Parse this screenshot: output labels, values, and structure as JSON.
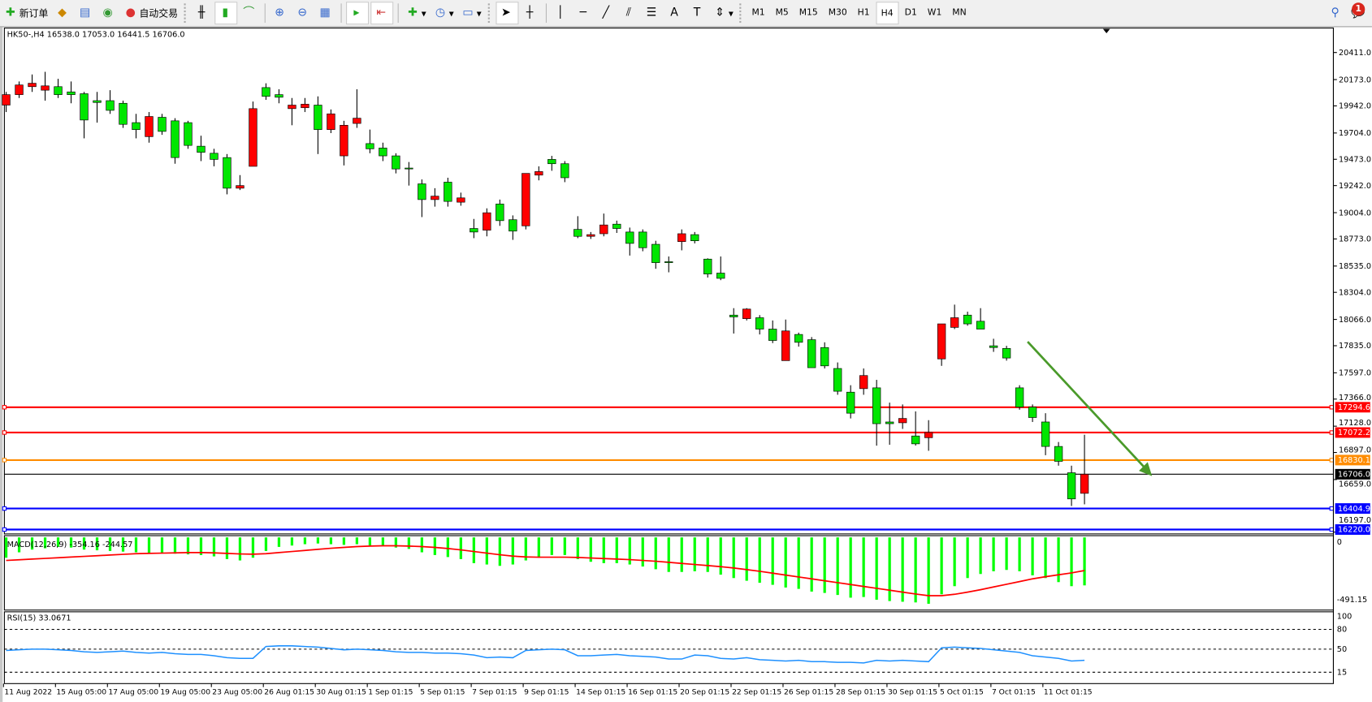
{
  "toolbar": {
    "new_order": "新订单",
    "auto_trading": "自动交易",
    "timeframes": [
      "M1",
      "M5",
      "M15",
      "M30",
      "H1",
      "H4",
      "D1",
      "W1",
      "MN"
    ],
    "active_timeframe": "H4",
    "notification_count": "1"
  },
  "chart": {
    "info": "HK50-,H4  16538.0 17053.0 16441.5 16706.0",
    "macd_label": "MACD(12,26,9) -354.16 -244.57",
    "rsi_label": "RSI(15) 33.0671",
    "price_ticks": [
      "20411.0",
      "20173.0",
      "19942.0",
      "19704.0",
      "19473.0",
      "19242.0",
      "19004.0",
      "18773.0",
      "18535.0",
      "18304.0",
      "18066.0",
      "17835.0",
      "17597.0",
      "17366.0",
      "17128.0",
      "16897.0",
      "16659.0",
      "16197.0"
    ],
    "macd_ticks": [
      "0",
      "-491.15"
    ],
    "rsi_ticks": [
      "100",
      "80",
      "50",
      "15"
    ],
    "time_labels": [
      "11 Aug 2022",
      "15 Aug 05:00",
      "17 Aug 05:00",
      "19 Aug 05:00",
      "23 Aug 05:00",
      "26 Aug 01:15",
      "30 Aug 01:15",
      "1 Sep 01:15",
      "5 Sep 01:15",
      "7 Sep 01:15",
      "9 Sep 01:15",
      "14 Sep 01:15",
      "16 Sep 01:15",
      "20 Sep 01:15",
      "22 Sep 01:15",
      "26 Sep 01:15",
      "28 Sep 01:15",
      "30 Sep 01:15",
      "5 Oct 01:15",
      "7 Oct 01:15",
      "11 Oct 01:15"
    ],
    "colors": {
      "up": "#ff0000",
      "down": "#00e600",
      "macd_hist": "#00ff00",
      "signal": "#ff0000",
      "rsi": "#1e90ff",
      "arrow": "#4a9a2a"
    },
    "hlines": [
      {
        "price": "17294.6",
        "color": "#ff0000"
      },
      {
        "price": "17072.2",
        "color": "#ff0000"
      },
      {
        "price": "16830.1",
        "color": "#ff8c00"
      },
      {
        "price": "16706.0",
        "color": "#000000"
      },
      {
        "price": "16404.9",
        "color": "#0000ff"
      },
      {
        "price": "16220.0",
        "color": "#0000ff"
      }
    ],
    "candles": [
      [
        19949,
        20065,
        19888,
        20041
      ],
      [
        20041,
        20157,
        20011,
        20126
      ],
      [
        20111,
        20218,
        20065,
        20141
      ],
      [
        20080,
        20241,
        19988,
        20118
      ],
      [
        20111,
        20180,
        20011,
        20041
      ],
      [
        20065,
        20157,
        19965,
        20041
      ],
      [
        20049,
        20065,
        19657,
        19818
      ],
      [
        19988,
        20065,
        19795,
        19972
      ],
      [
        19988,
        20080,
        19872,
        19903
      ],
      [
        19965,
        19988,
        19749,
        19780
      ],
      [
        19795,
        19872,
        19657,
        19734
      ],
      [
        19672,
        19888,
        19619,
        19849
      ],
      [
        19842,
        19872,
        19688,
        19718
      ],
      [
        19811,
        19834,
        19434,
        19488
      ],
      [
        19795,
        19811,
        19565,
        19595
      ],
      [
        19588,
        19680,
        19457,
        19534
      ],
      [
        19526,
        19565,
        19411,
        19472
      ],
      [
        19488,
        19519,
        19165,
        19219
      ],
      [
        19219,
        19334,
        19203,
        19242
      ],
      [
        19411,
        19980,
        19411,
        19918
      ],
      [
        20103,
        20141,
        19995,
        20026
      ],
      [
        20041,
        20088,
        19965,
        20018
      ],
      [
        19918,
        20011,
        19772,
        19949
      ],
      [
        19926,
        20011,
        19888,
        19957
      ],
      [
        19949,
        20026,
        19519,
        19734
      ],
      [
        19734,
        19911,
        19703,
        19872
      ],
      [
        19503,
        19811,
        19419,
        19772
      ],
      [
        19788,
        20088,
        19749,
        19834
      ],
      [
        19611,
        19734,
        19526,
        19565
      ],
      [
        19572,
        19619,
        19457,
        19503
      ],
      [
        19503,
        19526,
        19349,
        19388
      ],
      [
        19396,
        19449,
        19242,
        19388
      ],
      [
        19257,
        19296,
        18965,
        19119
      ],
      [
        19119,
        19219,
        19057,
        19149
      ],
      [
        19272,
        19311,
        19057,
        19103
      ],
      [
        19096,
        19180,
        19065,
        19134
      ],
      [
        18865,
        18949,
        18780,
        18834
      ],
      [
        18850,
        19042,
        18796,
        19003
      ],
      [
        19080,
        19119,
        18888,
        18934
      ],
      [
        18942,
        18980,
        18765,
        18842
      ],
      [
        18888,
        19349,
        18857,
        19349
      ],
      [
        19334,
        19411,
        19288,
        19365
      ],
      [
        19472,
        19503,
        19372,
        19434
      ],
      [
        19434,
        19457,
        19272,
        19311
      ],
      [
        18857,
        18973,
        18780,
        18796
      ],
      [
        18796,
        18834,
        18773,
        18811
      ],
      [
        18819,
        18996,
        18796,
        18896
      ],
      [
        18903,
        18934,
        18826,
        18865
      ],
      [
        18834,
        18873,
        18627,
        18734
      ],
      [
        18834,
        18857,
        18665,
        18696
      ],
      [
        18726,
        18757,
        18511,
        18565
      ],
      [
        18573,
        18619,
        18480,
        18565
      ],
      [
        18750,
        18857,
        18673,
        18819
      ],
      [
        18811,
        18834,
        18734,
        18757
      ],
      [
        18596,
        18603,
        18434,
        18465
      ],
      [
        18473,
        18619,
        18411,
        18427
      ],
      [
        18104,
        18165,
        17942,
        18088
      ],
      [
        18073,
        18165,
        18057,
        18157
      ],
      [
        18081,
        18104,
        17934,
        17981
      ],
      [
        17981,
        18057,
        17858,
        17881
      ],
      [
        17704,
        18065,
        17704,
        17965
      ],
      [
        17934,
        17950,
        17827,
        17865
      ],
      [
        17888,
        17911,
        17642,
        17642
      ],
      [
        17819,
        17865,
        17635,
        17658
      ],
      [
        17635,
        17688,
        17404,
        17435
      ],
      [
        17427,
        17488,
        17196,
        17242
      ],
      [
        17458,
        17635,
        17404,
        17573
      ],
      [
        17465,
        17535,
        16957,
        17150
      ],
      [
        17165,
        17335,
        16965,
        17150
      ],
      [
        17158,
        17319,
        17104,
        17196
      ],
      [
        17042,
        17258,
        16958,
        16973
      ],
      [
        17027,
        17181,
        16912,
        17073
      ],
      [
        17719,
        18027,
        17658,
        18027
      ],
      [
        17996,
        18196,
        17981,
        18081
      ],
      [
        18104,
        18134,
        18011,
        18027
      ],
      [
        18050,
        18165,
        17981,
        17981
      ],
      [
        17834,
        17896,
        17781,
        17819
      ],
      [
        17811,
        17834,
        17704,
        17727
      ],
      [
        17465,
        17488,
        17273,
        17296
      ],
      [
        17296,
        17319,
        17165,
        17204
      ],
      [
        17165,
        17242,
        16873,
        16950
      ],
      [
        16950,
        16989,
        16781,
        16819
      ],
      [
        16719,
        16781,
        16427,
        16489
      ],
      [
        16538,
        17053,
        16441.5,
        16706
      ]
    ],
    "macd_hist": [
      -150,
      -110,
      -90,
      -80,
      -70,
      -75,
      -90,
      -95,
      -100,
      -105,
      -110,
      -115,
      -115,
      -120,
      -125,
      -130,
      -140,
      -160,
      -170,
      -150,
      -100,
      -70,
      -60,
      -50,
      -45,
      -50,
      -55,
      -50,
      -60,
      -65,
      -75,
      -85,
      -110,
      -130,
      -145,
      -160,
      -190,
      -200,
      -210,
      -200,
      -170,
      -150,
      -130,
      -130,
      -160,
      -180,
      -190,
      -190,
      -200,
      -215,
      -235,
      -255,
      -255,
      -250,
      -255,
      -275,
      -300,
      -320,
      -335,
      -350,
      -370,
      -380,
      -400,
      -410,
      -425,
      -445,
      -440,
      -460,
      -470,
      -475,
      -480,
      -490,
      -420,
      -360,
      -300,
      -270,
      -250,
      -240,
      -250,
      -280,
      -300,
      -330,
      -360,
      -354.16
    ],
    "macd_signal": [
      -170,
      -165,
      -160,
      -155,
      -150,
      -145,
      -140,
      -135,
      -130,
      -125,
      -120,
      -118,
      -116,
      -114,
      -112,
      -112,
      -114,
      -118,
      -122,
      -124,
      -120,
      -112,
      -104,
      -96,
      -88,
      -80,
      -74,
      -68,
      -64,
      -62,
      -62,
      -64,
      -68,
      -74,
      -82,
      -92,
      -104,
      -116,
      -128,
      -138,
      -144,
      -146,
      -146,
      -146,
      -148,
      -152,
      -156,
      -160,
      -164,
      -170,
      -176,
      -184,
      -192,
      -200,
      -208,
      -216,
      -226,
      -238,
      -250,
      -264,
      -278,
      -292,
      -306,
      -320,
      -334,
      -348,
      -362,
      -376,
      -390,
      -404,
      -418,
      -430,
      -430,
      -420,
      -404,
      -386,
      -366,
      -346,
      -326,
      -306,
      -290,
      -276,
      -262,
      -244.57
    ],
    "rsi": [
      48,
      49,
      50,
      50,
      49,
      48,
      46,
      45,
      46,
      47,
      45,
      44,
      45,
      43,
      42,
      42,
      40,
      37,
      36,
      36,
      54,
      55,
      55,
      54,
      53,
      51,
      49,
      50,
      49,
      48,
      46,
      45,
      45,
      44,
      44,
      43,
      41,
      37,
      38,
      37,
      48,
      49,
      50,
      49,
      40,
      40,
      41,
      42,
      40,
      39,
      38,
      35,
      35,
      41,
      40,
      36,
      35,
      37,
      34,
      33,
      32,
      33,
      31,
      31,
      30,
      30,
      29,
      33,
      32,
      33,
      32,
      31,
      52,
      53,
      52,
      51,
      49,
      47,
      45,
      40,
      38,
      36,
      32,
      33.07
    ],
    "trend_arrow": {
      "direction": "down",
      "from_price": 17870,
      "to_price": 16690
    }
  }
}
